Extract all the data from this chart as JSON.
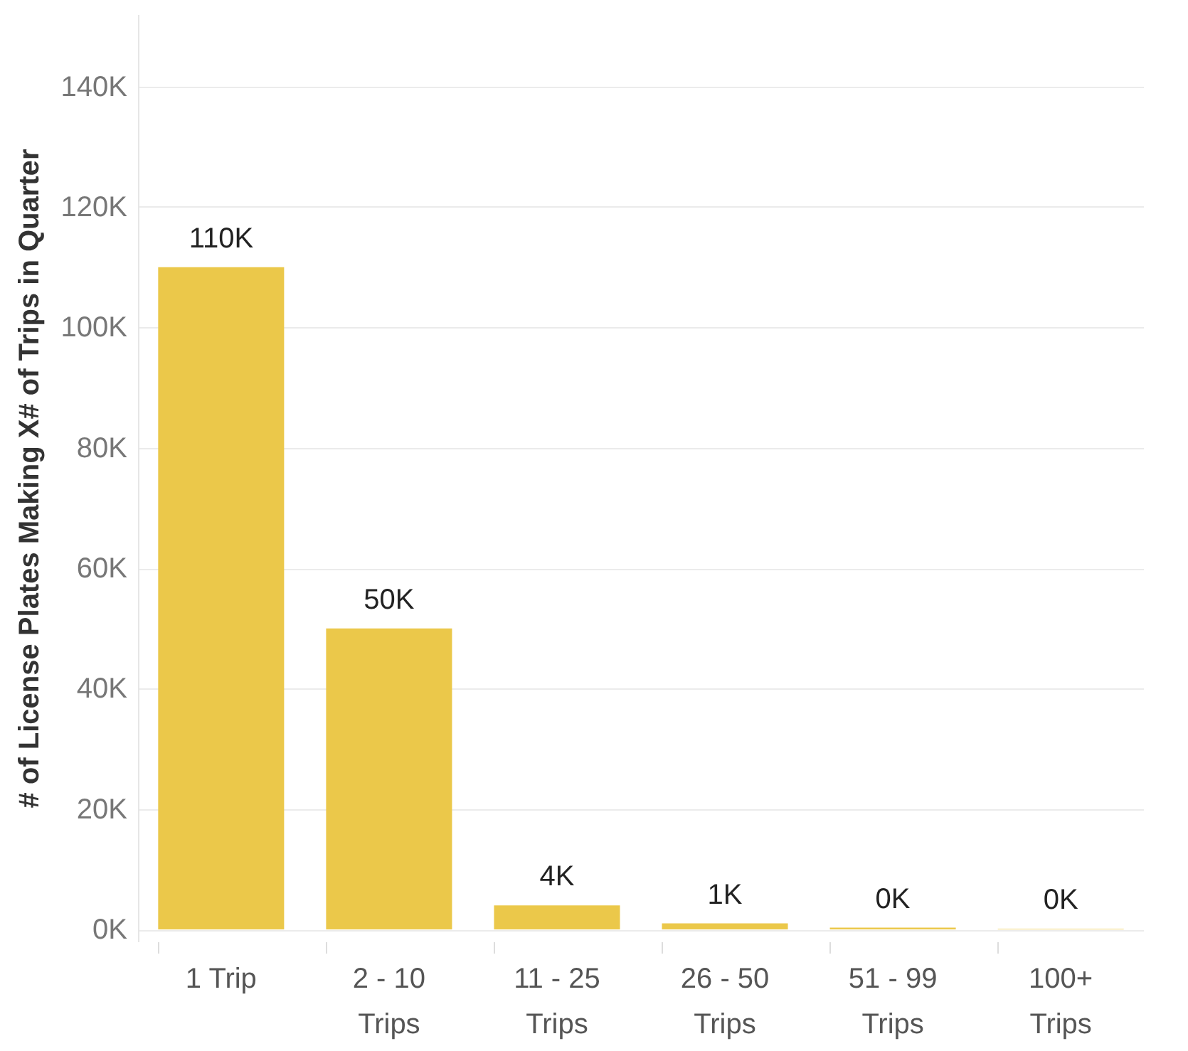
{
  "chart_data": {
    "type": "bar",
    "ylabel": "# of License Plates Making X# of Trips in Quarter",
    "categories": [
      "1 Trip",
      "2 - 10 Trips",
      "11 - 25 Trips",
      "26 - 50 Trips",
      "51 - 99 Trips",
      "100+ Trips"
    ],
    "values": [
      110000,
      50000,
      4000,
      1000,
      300,
      100
    ],
    "value_labels": [
      "110K",
      "50K",
      "4K",
      "1K",
      "0K",
      "0K"
    ],
    "color": "#ebc84a",
    "ylim": [
      -2000,
      152000
    ],
    "yticks": [
      {
        "value": 0,
        "label": "0K"
      },
      {
        "value": 20000,
        "label": "20K"
      },
      {
        "value": 40000,
        "label": "40K"
      },
      {
        "value": 60000,
        "label": "60K"
      },
      {
        "value": 80000,
        "label": "80K"
      },
      {
        "value": 100000,
        "label": "100K"
      },
      {
        "value": 120000,
        "label": "120K"
      },
      {
        "value": 140000,
        "label": "140K"
      }
    ],
    "grid": "y"
  }
}
